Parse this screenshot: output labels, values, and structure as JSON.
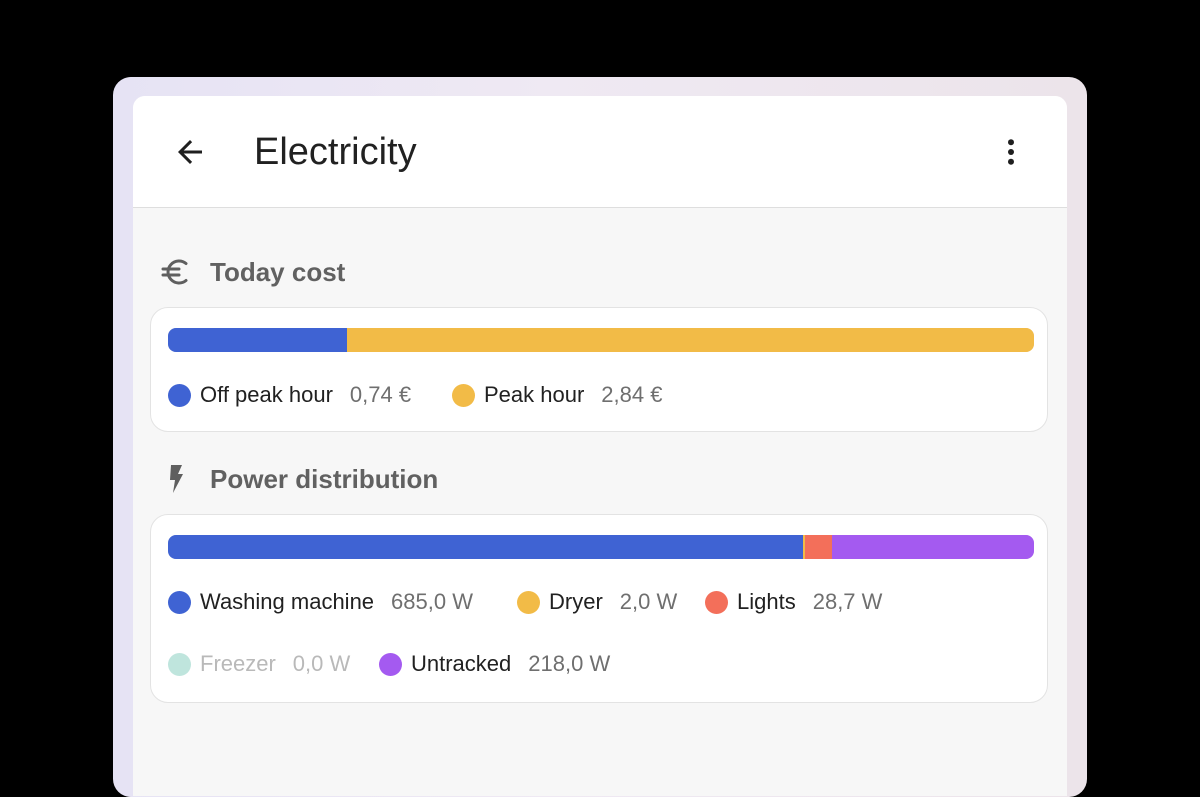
{
  "header": {
    "title": "Electricity",
    "back_icon": "arrow-left-icon",
    "menu_icon": "dots-vertical-icon"
  },
  "today_cost": {
    "title": "Today cost",
    "icon": "currency-eur-icon",
    "segments": [
      {
        "label": "Off peak hour",
        "value_text": "0,74 €",
        "value": 0.74,
        "color": "#3f63d3"
      },
      {
        "label": "Peak hour",
        "value_text": "2,84 €",
        "value": 2.84,
        "color": "#f2bb47"
      }
    ]
  },
  "power_distribution": {
    "title": "Power distribution",
    "icon": "lightning-bolt-icon",
    "segments": [
      {
        "label": "Washing machine",
        "value_text": "685,0 W",
        "value": 685.0,
        "color": "#3f63d3"
      },
      {
        "label": "Dryer",
        "value_text": "2,0 W",
        "value": 2.0,
        "color": "#f2bb47"
      },
      {
        "label": "Lights",
        "value_text": "28,7 W",
        "value": 28.7,
        "color": "#f36f5a"
      },
      {
        "label": "Freezer",
        "value_text": "0,0 W",
        "value": 0.0,
        "color": "#bfe5dd"
      },
      {
        "label": "Untracked",
        "value_text": "218,0 W",
        "value": 218.0,
        "color": "#a45af0"
      }
    ]
  }
}
